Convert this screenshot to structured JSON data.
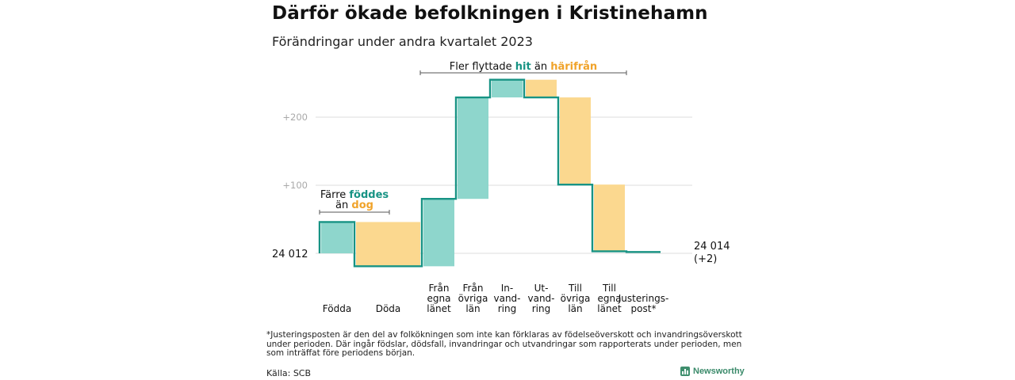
{
  "title": "Därför ökade befolkningen i Kristinehamn",
  "subtitle": "Förändringar under andra kvartalet 2023",
  "chart_data": {
    "type": "waterfall",
    "y_ticks": [
      {
        "value": 100,
        "label": "+100"
      },
      {
        "value": 200,
        "label": "+200"
      }
    ],
    "start_label": "24  012",
    "end_label_line1": "24 014",
    "end_label_line2": "(+2)",
    "categories": [
      {
        "lines": [
          "Födda"
        ],
        "value": 46
      },
      {
        "lines": [
          "Döda"
        ],
        "value": -65
      },
      {
        "lines": [
          "Från",
          "egna",
          "länet"
        ],
        "value": 99
      },
      {
        "lines": [
          "Från",
          "övriga",
          "län"
        ],
        "value": 149
      },
      {
        "lines": [
          "In-",
          "vand-",
          "ring"
        ],
        "value": 26
      },
      {
        "lines": [
          "Ut-",
          "vand-",
          "ring"
        ],
        "value": -26
      },
      {
        "lines": [
          "Till",
          "övriga",
          "län"
        ],
        "value": -128
      },
      {
        "lines": [
          "Till",
          "egna",
          "länet"
        ],
        "value": -98
      },
      {
        "lines": [
          "Justerings-",
          "post*"
        ],
        "value": -1
      }
    ],
    "colors": {
      "increase": "#8ed6cc",
      "decrease": "#fbd88f",
      "line": "#179384",
      "grid": "#dddddd",
      "teal_text": "#179384",
      "orange_text": "#f0a32a"
    },
    "annotations": {
      "births": {
        "prefix": "Färre ",
        "highlight1": "föddes",
        "middle": "än ",
        "highlight2": "dog"
      },
      "migration": {
        "prefix": "Fler flyttade ",
        "highlight1": "hit",
        "middle": " än ",
        "highlight2": "härifrån"
      }
    }
  },
  "footnote": "*Justeringsposten är den del av folkökningen som inte kan förklaras av födelseöverskott och invandringsöverskott under perioden. Där ingår födslar, dödsfall, invandringar och utvandringar som rapporterats under perioden, men som inträffat före periodens början.",
  "source": "Källa: SCB",
  "brand": "Newsworthy"
}
